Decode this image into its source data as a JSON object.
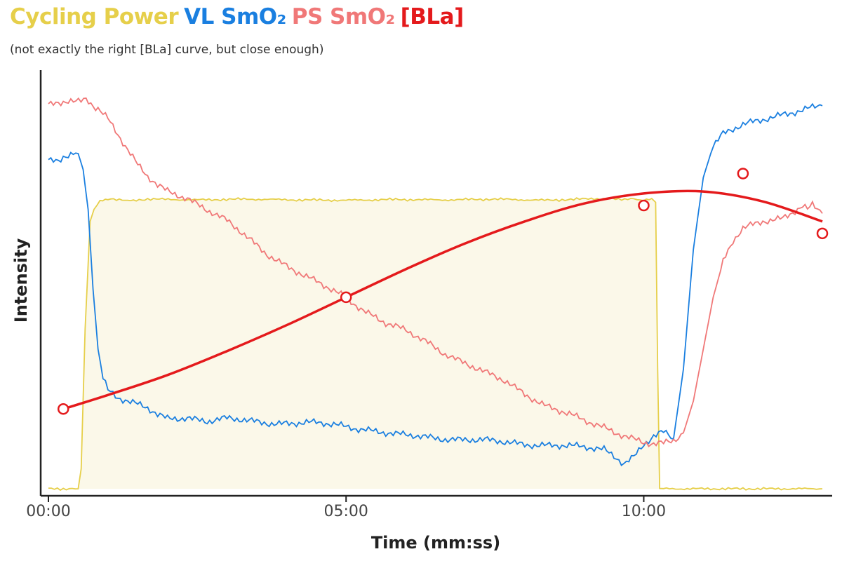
{
  "title_parts": [
    {
      "text": "Cycling Power",
      "color": "#E6CF4A"
    },
    {
      "text": "VL SmO₂",
      "color": "#1A7FE0"
    },
    {
      "text": "PS SmO₂",
      "color": "#F07878"
    },
    {
      "text": "[BLa]",
      "color": "#E41A1C"
    }
  ],
  "subtitle": "(not exactly the right [BLa] curve, but close enough)",
  "chart_data": {
    "type": "line",
    "xlabel": "Time (mm:ss)",
    "ylabel": "Intensity",
    "x_unit": "seconds",
    "xlim": [
      0,
      780
    ],
    "ylim": [
      0,
      100
    ],
    "grid": false,
    "legend": "title",
    "x_ticks": [
      {
        "value": 0,
        "label": "00:00"
      },
      {
        "value": 300,
        "label": "05:00"
      },
      {
        "value": 600,
        "label": "10:00"
      }
    ],
    "series": [
      {
        "name": "Cycling Power",
        "color": "#E6CF4A",
        "fill": "#FBF8E9",
        "x": [
          0,
          30,
          33,
          37,
          42,
          46,
          52,
          60,
          80,
          100,
          150,
          200,
          250,
          300,
          350,
          400,
          450,
          500,
          550,
          590,
          600,
          608,
          612,
          614,
          616,
          620,
          700,
          780
        ],
        "y": [
          0,
          0,
          5,
          40,
          67,
          70,
          72,
          72.5,
          72.3,
          72.6,
          72.4,
          72.6,
          72.4,
          72.3,
          72.5,
          72.4,
          72.6,
          72.3,
          72.7,
          72.6,
          72.3,
          72.8,
          71.8,
          30,
          0,
          0,
          0,
          0
        ]
      },
      {
        "name": "VL SmO₂",
        "color": "#1A7FE0",
        "x": [
          0,
          10,
          15,
          30,
          35,
          40,
          45,
          50,
          55,
          60,
          65,
          70,
          80,
          90,
          100,
          110,
          120,
          140,
          160,
          180,
          200,
          230,
          260,
          290,
          320,
          350,
          380,
          410,
          440,
          470,
          500,
          530,
          560,
          570,
          580,
          590,
          600,
          605,
          610,
          620,
          630,
          640,
          650,
          660,
          670,
          680,
          700,
          720,
          740,
          760,
          780
        ],
        "y": [
          82,
          82,
          83,
          84,
          80,
          70,
          50,
          35,
          28,
          25,
          24,
          23,
          22,
          21,
          20,
          18.5,
          17.5,
          18,
          17,
          17.5,
          17,
          16.5,
          16.5,
          16,
          15,
          13.5,
          13,
          12.5,
          12,
          11.5,
          11,
          10.5,
          10,
          8.5,
          6.5,
          8,
          11,
          12,
          13,
          14,
          12.5,
          30,
          60,
          78,
          86,
          89,
          91,
          92.5,
          94,
          95,
          96
        ]
      },
      {
        "name": "PS SmO₂",
        "color": "#F07878",
        "x": [
          0,
          20,
          38,
          50,
          60,
          70,
          80,
          90,
          100,
          110,
          120,
          140,
          160,
          180,
          200,
          220,
          240,
          260,
          280,
          300,
          320,
          340,
          360,
          380,
          400,
          420,
          440,
          460,
          480,
          500,
          520,
          540,
          560,
          580,
          600,
          610,
          620,
          630,
          640,
          650,
          660,
          670,
          680,
          690,
          700,
          720,
          740,
          760,
          765,
          770,
          780
        ],
        "y": [
          96,
          97,
          97.5,
          95.5,
          93,
          89,
          85,
          81,
          78,
          76,
          74.5,
          73,
          70,
          67,
          63,
          59,
          56,
          53,
          50.5,
          48,
          44.5,
          41.5,
          39.5,
          37,
          34,
          31.5,
          29,
          27,
          24,
          21,
          19,
          17,
          15.5,
          13.5,
          11.5,
          11,
          11.2,
          12,
          14,
          22,
          35,
          48,
          57,
          62,
          65,
          67,
          68,
          71,
          70,
          71,
          69
        ]
      },
      {
        "name": "[BLa]",
        "color": "#E41A1C",
        "type": "curve",
        "x": [
          15,
          60,
          120,
          180,
          240,
          300,
          360,
          420,
          480,
          540,
          600,
          660,
          720,
          780
        ],
        "y": [
          20,
          23.5,
          28.5,
          34.5,
          41,
          48,
          55,
          61.5,
          67,
          71.5,
          74,
          74.5,
          72,
          67
        ]
      },
      {
        "name": "[BLa]",
        "color": "#E41A1C",
        "type": "points",
        "x": [
          15,
          300,
          600,
          700,
          780
        ],
        "y": [
          20,
          48,
          71,
          79,
          64
        ]
      }
    ]
  }
}
